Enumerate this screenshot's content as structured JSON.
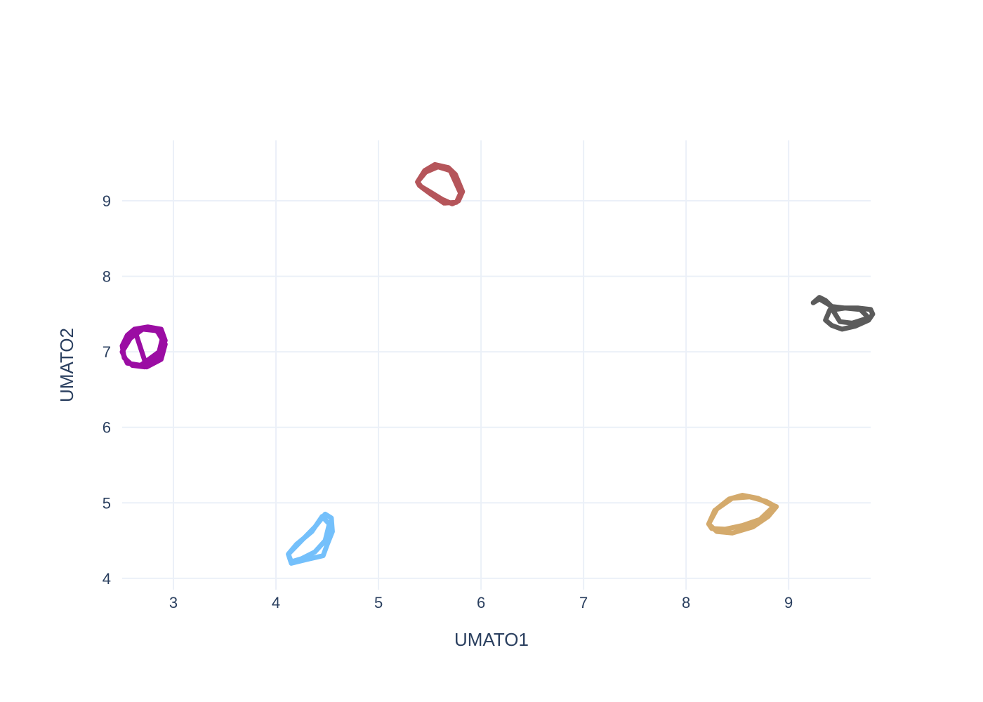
{
  "chart_data": {
    "type": "line",
    "title": "",
    "xlabel": "UMATO1",
    "ylabel": "UMATO2",
    "xlim": [
      2.5,
      9.8
    ],
    "ylim": [
      3.85,
      9.8
    ],
    "x_ticks": [
      3,
      4,
      5,
      6,
      7,
      8,
      9
    ],
    "y_ticks": [
      4,
      5,
      6,
      7,
      8,
      9
    ],
    "grid": true,
    "legend": "none",
    "series": [
      {
        "color": "#b5555a",
        "x": [
          5.38,
          5.45,
          5.55,
          5.68,
          5.75,
          5.82,
          5.78,
          5.72,
          5.62,
          5.5,
          5.4,
          5.38,
          5.46,
          5.58,
          5.7,
          5.8,
          5.76,
          5.64,
          5.52,
          5.42,
          5.38
        ],
        "y": [
          9.25,
          9.4,
          9.48,
          9.44,
          9.35,
          9.12,
          9.0,
          8.96,
          9.02,
          9.12,
          9.2,
          9.25,
          9.38,
          9.45,
          9.4,
          9.1,
          8.98,
          8.97,
          9.08,
          9.18,
          9.25
        ]
      },
      {
        "color": "#9b0da3",
        "x": [
          2.62,
          2.75,
          2.88,
          2.92,
          2.85,
          2.72,
          2.6,
          2.52,
          2.5,
          2.55,
          2.62,
          2.78,
          2.9,
          2.86,
          2.68,
          2.55,
          2.5,
          2.58,
          2.7,
          2.84,
          2.92,
          2.88,
          2.74,
          2.62
        ],
        "y": [
          7.3,
          7.33,
          7.3,
          7.15,
          6.95,
          6.8,
          6.82,
          6.92,
          7.08,
          7.22,
          7.3,
          7.32,
          7.22,
          7.0,
          6.82,
          6.85,
          7.0,
          7.18,
          7.3,
          7.28,
          7.1,
          6.9,
          6.8,
          7.3
        ]
      },
      {
        "color": "#5b5b5b",
        "x": [
          9.24,
          9.3,
          9.36,
          9.42,
          9.55,
          9.68,
          9.8,
          9.82,
          9.78,
          9.65,
          9.52,
          9.42,
          9.36,
          9.4,
          9.55,
          9.7,
          9.78,
          9.62,
          9.5,
          9.4,
          9.3,
          9.24
        ],
        "y": [
          7.65,
          7.72,
          7.68,
          7.6,
          7.58,
          7.58,
          7.56,
          7.5,
          7.42,
          7.34,
          7.3,
          7.35,
          7.42,
          7.55,
          7.58,
          7.56,
          7.45,
          7.38,
          7.4,
          7.62,
          7.7,
          7.65
        ]
      },
      {
        "color": "#74c0fb",
        "x": [
          4.12,
          4.25,
          4.38,
          4.48,
          4.54,
          4.55,
          4.5,
          4.46,
          4.3,
          4.15,
          4.12,
          4.2,
          4.35,
          4.45,
          4.52,
          4.48,
          4.38,
          4.25,
          4.15,
          4.12
        ],
        "y": [
          4.32,
          4.5,
          4.68,
          4.85,
          4.8,
          4.62,
          4.45,
          4.3,
          4.25,
          4.2,
          4.32,
          4.45,
          4.62,
          4.82,
          4.72,
          4.5,
          4.35,
          4.26,
          4.22,
          4.32
        ]
      },
      {
        "color": "#d4aa6c",
        "x": [
          8.22,
          8.3,
          8.42,
          8.55,
          8.7,
          8.82,
          8.88,
          8.8,
          8.65,
          8.45,
          8.3,
          8.22,
          8.28,
          8.45,
          8.62,
          8.78,
          8.86,
          8.72,
          8.55,
          8.38,
          8.25,
          8.22
        ],
        "y": [
          4.72,
          4.92,
          5.05,
          5.1,
          5.06,
          4.98,
          4.95,
          4.82,
          4.68,
          4.6,
          4.62,
          4.72,
          4.9,
          5.06,
          5.08,
          5.02,
          4.96,
          4.78,
          4.7,
          4.65,
          4.66,
          4.72
        ]
      }
    ]
  }
}
